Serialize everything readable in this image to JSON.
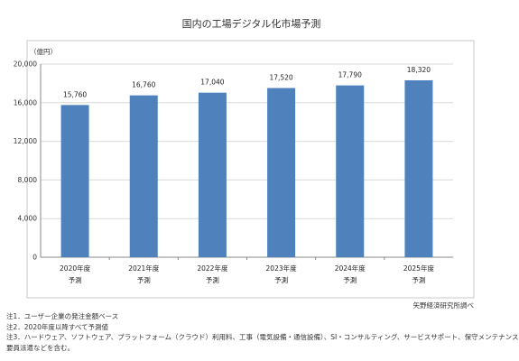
{
  "chart_data": {
    "type": "bar",
    "title": "国内の工場デジタル化市場予測",
    "unit_label": "（億円）",
    "categories": [
      {
        "year": "2020年度",
        "note": "予測"
      },
      {
        "year": "2021年度",
        "note": "予測"
      },
      {
        "year": "2022年度",
        "note": "予測"
      },
      {
        "year": "2023年度",
        "note": "予測"
      },
      {
        "year": "2024年度",
        "note": "予測"
      },
      {
        "year": "2025年度",
        "note": "予測"
      }
    ],
    "values": [
      15760,
      16760,
      17040,
      17520,
      17790,
      18320
    ],
    "value_labels": [
      "15,760",
      "16,760",
      "17,040",
      "17,520",
      "17,790",
      "18,320"
    ],
    "ylim": [
      0,
      20000
    ],
    "yticks": [
      0,
      4000,
      8000,
      12000,
      16000,
      20000
    ],
    "ytick_labels": [
      "0",
      "4,000",
      "8,000",
      "12,000",
      "16,000",
      "20,000"
    ],
    "grid": true,
    "bar_color": "#4f81bd"
  },
  "source": "矢野経済研究所調べ",
  "notes": [
    "注1．ユーザー企業の発注金額ベース",
    "注2．2020年度以降すべて予測値",
    "注3．ハードウェア、ソフトウェア、プラットフォーム（クラウド）利用料、工事（電気設備・通信設備）、SI・コンサルティング、サービスサポート、保守メンテナンス",
    "要員派遣などを含む。"
  ]
}
